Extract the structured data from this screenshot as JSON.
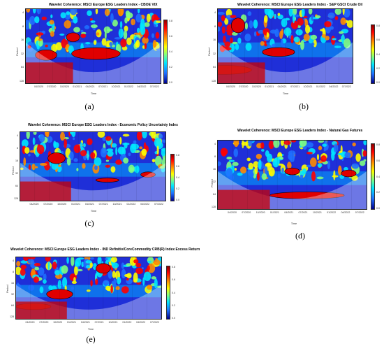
{
  "panels": [
    {
      "id": "a",
      "title": "Wavelet Coherence: MSCI Europe ESG Leaders Index - CBOE VIX",
      "y_axis_label": "Period",
      "y_ticks": [
        "4",
        "8",
        "16",
        "32",
        "64",
        "128"
      ],
      "x_ticks": [
        "04/2020",
        "07/2020",
        "10/2020",
        "01/2021",
        "04/2021",
        "07/2021",
        "10/2021",
        "01/2022",
        "04/2022",
        "07/2022"
      ],
      "x_axis_label": "Time",
      "colorbar_ticks": [
        "0.8",
        "0.6",
        "0.4",
        "0.2",
        "0.0"
      ],
      "panel_label": "(a)"
    },
    {
      "id": "b",
      "title": "Wavelet Coherence: MSCI Europe ESG Leaders Index - S&P GSCI Crude Oil",
      "y_axis_label": "Period",
      "y_ticks": [
        "4",
        "8",
        "16",
        "32",
        "64",
        "128"
      ],
      "x_ticks": [
        "04/2020",
        "07/2020",
        "10/2020",
        "01/2021",
        "04/2021",
        "07/2021",
        "10/2021",
        "01/2022",
        "04/2022",
        "07/2022"
      ],
      "x_axis_label": "Time",
      "colorbar_ticks": [
        "0.8",
        "0.6",
        "0.4",
        "0.2",
        "0.0"
      ],
      "panel_label": "(b)"
    },
    {
      "id": "c",
      "title": "Wavelet Coherence: MSCI Europe ESG Leaders Index - Economic Policy Uncertainty Index",
      "y_axis_label": "Period",
      "y_ticks": [
        "4",
        "8",
        "16",
        "32",
        "64",
        "128"
      ],
      "x_ticks": [
        "04/2020",
        "07/2020",
        "10/2020",
        "01/2021",
        "04/2021",
        "07/2021",
        "10/2021",
        "01/2022",
        "04/2022",
        "07/2022"
      ],
      "x_axis_label": "Time",
      "colorbar_ticks": [
        "0.8",
        "0.6",
        "0.4",
        "0.2",
        "0.0"
      ],
      "panel_label": "(c)"
    },
    {
      "id": "d",
      "title": "Wavelet Coherence: MSCI Europe ESG Leaders Index - Natural Gas Futures",
      "y_axis_label": "Period",
      "y_ticks": [
        "4",
        "8",
        "16",
        "32",
        "64",
        "128"
      ],
      "x_ticks": [
        "04/2020",
        "07/2020",
        "10/2020",
        "01/2021",
        "04/2021",
        "07/2021",
        "10/2021",
        "01/2022",
        "04/2022",
        "07/2022"
      ],
      "x_axis_label": "Time",
      "colorbar_ticks": [
        "0.8",
        "0.6",
        "0.4",
        "0.2",
        "0.0"
      ],
      "panel_label": "(d)"
    },
    {
      "id": "e",
      "title": "Wavelet Coherence: MSCI Europe ESG Leaders Index - IND Refinitiv/CoreCommodity CRB(R) Index Excess Return",
      "y_axis_label": "Period",
      "y_ticks": [
        "4",
        "8",
        "16",
        "32",
        "64",
        "128"
      ],
      "x_ticks": [
        "04/2020",
        "07/2020",
        "10/2020",
        "01/2021",
        "04/2021",
        "07/2021",
        "10/2021",
        "01/2022",
        "04/2022",
        "07/2022"
      ],
      "x_axis_label": "Time",
      "colorbar_ticks": [
        "0.8",
        "0.6",
        "0.4",
        "0.2",
        "0.0"
      ],
      "panel_label": "(e)"
    }
  ],
  "colors": {
    "high_coherence": "#d40000",
    "mid_coherence": "#ffff00",
    "low_coherence": "#1a1aff",
    "background_low": "#00008b",
    "cone_of_influence": "#ffffff"
  }
}
